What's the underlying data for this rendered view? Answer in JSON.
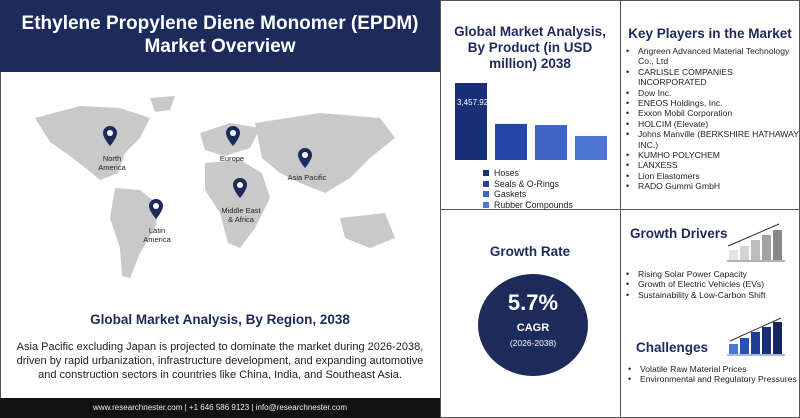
{
  "header": {
    "title": "Ethylene Propylene Diene Monomer (EPDM) Market Overview"
  },
  "map": {
    "pins": [
      {
        "label": "North America"
      },
      {
        "label": "Europe"
      },
      {
        "label": "Asia Pacific"
      },
      {
        "label": "Middle East & Africa"
      },
      {
        "label": "Latin America"
      }
    ],
    "pin_color": "#1c2a5c"
  },
  "region": {
    "title": "Global Market Analysis, By Region, 2038",
    "text": "Asia Pacific excluding Japan is projected to dominate the market during 2026-2038, driven by rapid urbanization, infrastructure development, and expanding automotive and construction sectors in countries like China, India, and Southeast Asia."
  },
  "footer": {
    "text": "www.researchnester.com | +1 646 586 9123 | info@researchnester.com"
  },
  "chart_data": {
    "type": "bar",
    "title": "Global Market Analysis, By Product (in USD million) 2038",
    "categories": [
      "Hoses",
      "Seals & O-Rings",
      "Gaskets",
      "Rubber Compounds"
    ],
    "values": [
      3457.92,
      1620,
      1570,
      1080
    ],
    "data_labels": [
      "3,457.92",
      "",
      "",
      ""
    ],
    "colors": [
      "#1a2f7a",
      "#2446a8",
      "#3d64c4",
      "#4d76d2"
    ],
    "legend": "bottom"
  },
  "key_players": {
    "title": "Key Players in the Market",
    "items": [
      "Angreen Advanced Material Technology Co., Ltd",
      "CARLISLE COMPANIES INCORPORATED",
      "Dow Inc.",
      "ENEOS Holdings, Inc.",
      "Exxon Mobil Corporation",
      "HOLCIM (Elevate)",
      "Johns Manville (BERKSHIRE HATHAWAY INC.)",
      "KUMHO POLYCHEM",
      "LANXESS",
      "Lion Elastomers",
      "RADO Gummi GmbH"
    ]
  },
  "growth": {
    "title": "Growth Rate",
    "value": "5.7%",
    "label": "CAGR",
    "period": "(2026-2038)"
  },
  "drivers": {
    "title": "Growth Drivers",
    "items": [
      "Rising Solar Power Capacity",
      "Growth of Electric Vehicles (EVs)",
      "Sustainability & Low-Carbon Shift"
    ]
  },
  "challenges": {
    "title": "Challenges",
    "items": [
      "Volatile Raw Material Prices",
      "Environmental and Regulatory Pressures"
    ]
  }
}
